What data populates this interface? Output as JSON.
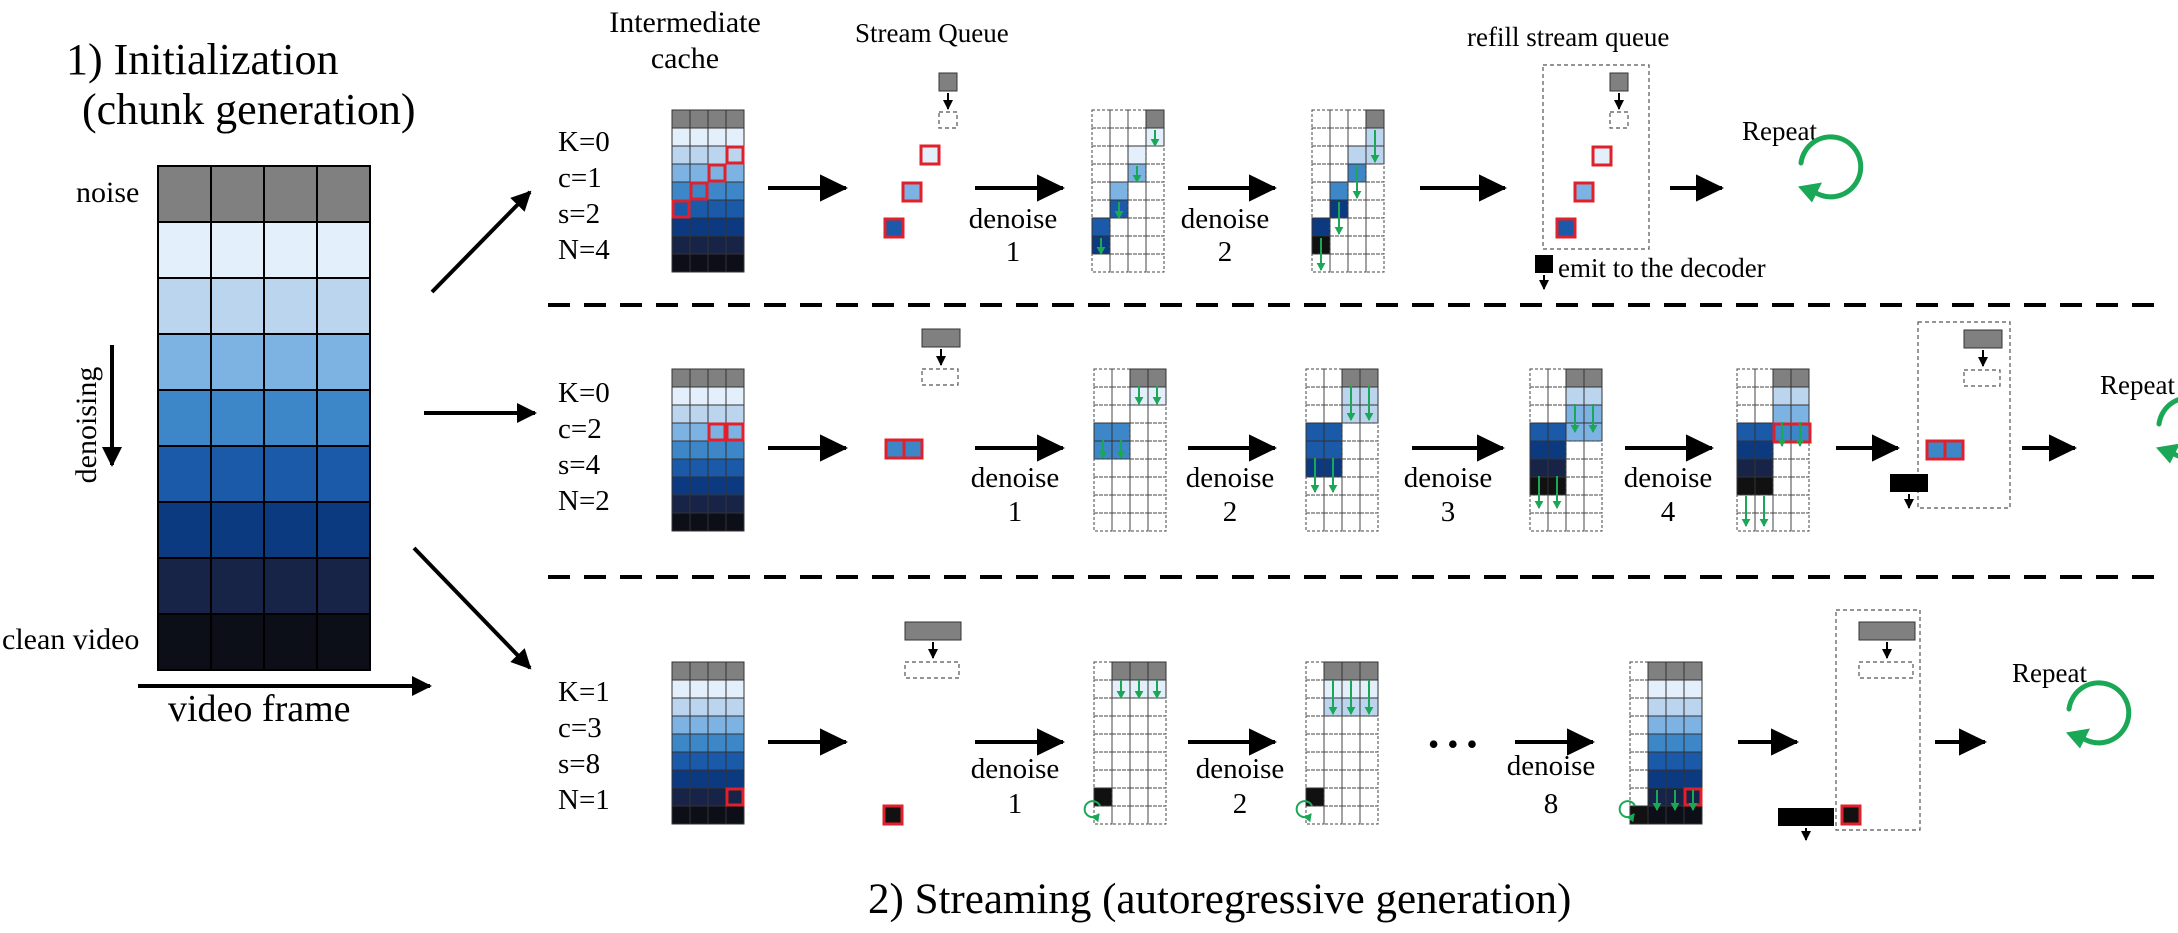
{
  "init": {
    "title_line1": "1)   Initialization",
    "title_line2": "(chunk generation)",
    "noise_label": "noise",
    "denoising_label": "denoising",
    "clean_label": "clean video",
    "frame_label": "video frame"
  },
  "header": {
    "intermediate_cache_line1": "Intermediate",
    "intermediate_cache_line2": "cache",
    "stream_queue": "Stream Queue",
    "refill_stream_queue": "refill stream queue"
  },
  "emit_label": "emit to the decoder",
  "repeat_label": "Repeat",
  "denoise_word": "denoise",
  "ellipsis": "•  •  •",
  "streaming_title": "2) Streaming (autoregressive generation)",
  "rows": [
    {
      "params": [
        "K=0",
        "c=1",
        "s=2",
        "N=4"
      ],
      "steps": [
        "1",
        "2"
      ]
    },
    {
      "params": [
        "K=0",
        "c=2",
        "s=4",
        "N=2"
      ],
      "steps": [
        "1",
        "2",
        "3",
        "4"
      ]
    },
    {
      "params": [
        "K=1",
        "c=3",
        "s=8",
        "N=1"
      ],
      "steps": [
        "1",
        "2",
        "8"
      ]
    }
  ],
  "colors": {
    "noise": "#808080",
    "levels": [
      "#e3effb",
      "#bcd5ef",
      "#7cb3e3",
      "#3d87c9",
      "#1b5aa8",
      "#0c3a80",
      "#172447",
      "#0c0e18"
    ],
    "highlight": "#e0202a",
    "green": "#1aa856"
  }
}
